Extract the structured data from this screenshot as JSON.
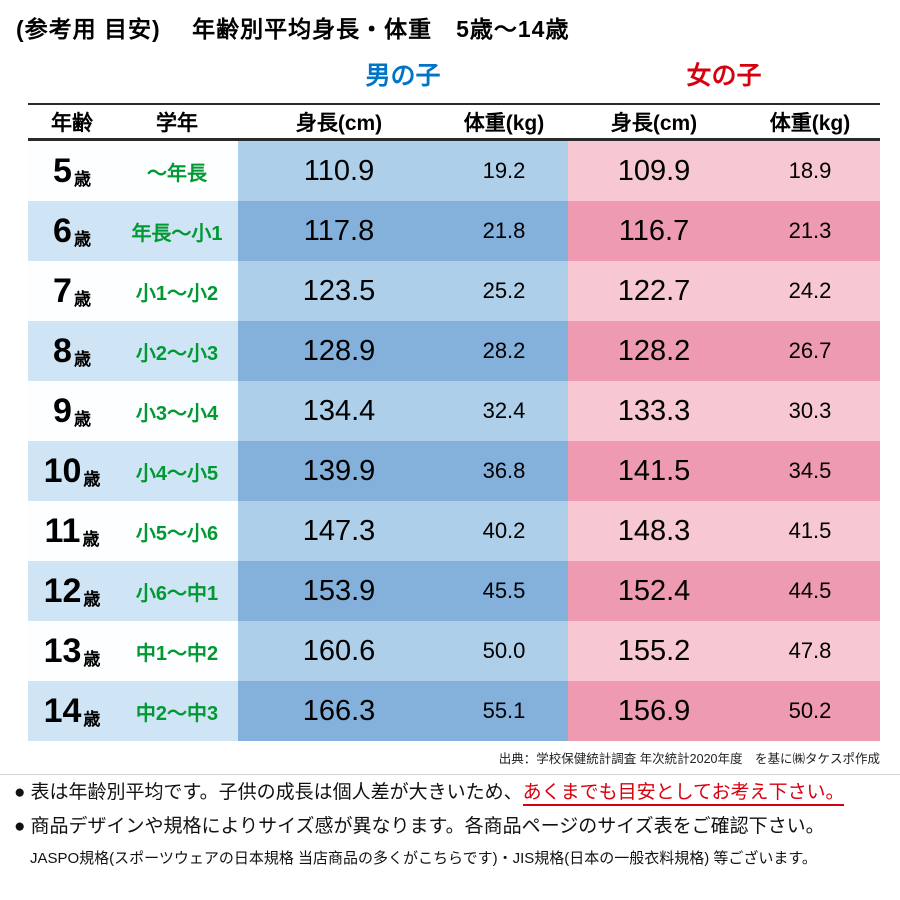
{
  "title": "(参考用 目安)　 年齢別平均身長・体重　5歳〜14歳",
  "boys_label": "男の子",
  "girls_label": "女の子",
  "headers": {
    "age": "年齢",
    "grade": "学年",
    "height": "身長(cm)",
    "weight": "体重(kg)"
  },
  "chart_data": {
    "type": "table",
    "title": "年齢別平均身長・体重 5歳〜14歳",
    "columns": [
      "年齢",
      "学年",
      "男の子 身長(cm)",
      "男の子 体重(kg)",
      "女の子 身長(cm)",
      "女の子 体重(kg)"
    ],
    "rows": [
      {
        "age": "5",
        "unit": "歳",
        "grade": "〜年長",
        "boy_height": "110.9",
        "boy_weight": "19.2",
        "girl_height": "109.9",
        "girl_weight": "18.9"
      },
      {
        "age": "6",
        "unit": "歳",
        "grade": "年長〜小1",
        "boy_height": "117.8",
        "boy_weight": "21.8",
        "girl_height": "116.7",
        "girl_weight": "21.3"
      },
      {
        "age": "7",
        "unit": "歳",
        "grade": "小1〜小2",
        "boy_height": "123.5",
        "boy_weight": "25.2",
        "girl_height": "122.7",
        "girl_weight": "24.2"
      },
      {
        "age": "8",
        "unit": "歳",
        "grade": "小2〜小3",
        "boy_height": "128.9",
        "boy_weight": "28.2",
        "girl_height": "128.2",
        "girl_weight": "26.7"
      },
      {
        "age": "9",
        "unit": "歳",
        "grade": "小3〜小4",
        "boy_height": "134.4",
        "boy_weight": "32.4",
        "girl_height": "133.3",
        "girl_weight": "30.3"
      },
      {
        "age": "10",
        "unit": "歳",
        "grade": "小4〜小5",
        "boy_height": "139.9",
        "boy_weight": "36.8",
        "girl_height": "141.5",
        "girl_weight": "34.5"
      },
      {
        "age": "11",
        "unit": "歳",
        "grade": "小5〜小6",
        "boy_height": "147.3",
        "boy_weight": "40.2",
        "girl_height": "148.3",
        "girl_weight": "41.5"
      },
      {
        "age": "12",
        "unit": "歳",
        "grade": "小6〜中1",
        "boy_height": "153.9",
        "boy_weight": "45.5",
        "girl_height": "152.4",
        "girl_weight": "44.5"
      },
      {
        "age": "13",
        "unit": "歳",
        "grade": "中1〜中2",
        "boy_height": "160.6",
        "boy_weight": "50.0",
        "girl_height": "155.2",
        "girl_weight": "47.8"
      },
      {
        "age": "14",
        "unit": "歳",
        "grade": "中2〜中3",
        "boy_height": "166.3",
        "boy_weight": "55.1",
        "girl_height": "156.9",
        "girl_weight": "50.2"
      }
    ]
  },
  "source": "出典：学校保健統計調査 年次統計2020年度　を基に㈱タケスポ作成",
  "notes": {
    "bullet": "●",
    "note1_text": "表は年齢別平均です。子供の成長は個人差が大きいため、",
    "note1_highlight": "あくまでも目安としてお考え下さい。",
    "note2_text": "商品デザインや規格によりサイズ感が異なります。各商品ページのサイズ表をご確認下さい。",
    "note3_text": "JASPO規格(スポーツウェアの日本規格 当店商品の多くがこちらです)・JIS規格(日本の一般衣料規格) 等ございます。"
  },
  "colors": {
    "boys_header": "#0075c8",
    "girls_header": "#d7000f",
    "grade_green": "#009933",
    "boy_cell_light": "#aecfe9",
    "boy_cell_dark": "#84b1db",
    "girl_cell_light": "#f7c7d2",
    "girl_cell_dark": "#ee9bb1",
    "left_cell_light": "#fdfeff",
    "left_cell_dark": "#cfe4f4",
    "note_red": "#d7000f"
  }
}
